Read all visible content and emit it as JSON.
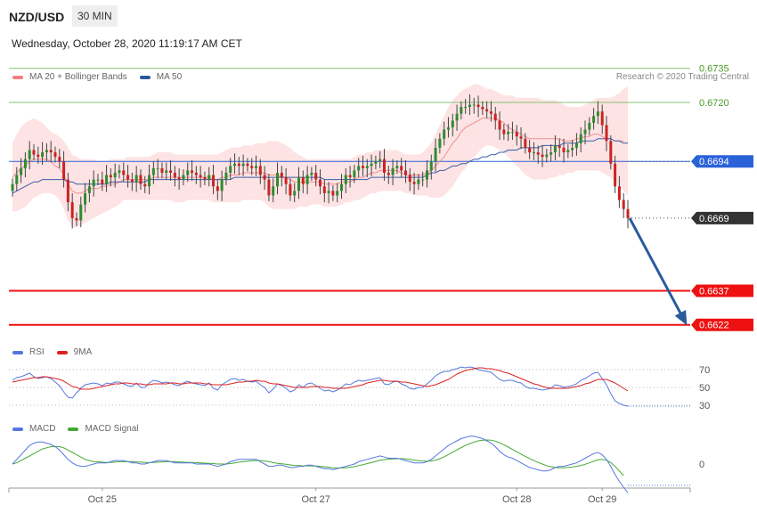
{
  "header": {
    "pair": "NZD/USD",
    "timeframe": "30 MIN",
    "datetime": "Wednesday, October 28, 2020 11:19:17 AM CET"
  },
  "legend": [
    {
      "label": "MA 20 + Bollinger Bands",
      "color": "#f08080"
    },
    {
      "label": "MA 50",
      "color": "#2a5a9e"
    }
  ],
  "credit": "Research © 2020 Trading Central",
  "indicators": {
    "rsi_legend": [
      {
        "label": "RSI",
        "color": "#5577dd"
      },
      {
        "label": "9MA",
        "color": "#dd2222"
      }
    ],
    "macd_legend": [
      {
        "label": "MACD",
        "color": "#5577dd"
      },
      {
        "label": "MACD Signal",
        "color": "#44aa33"
      }
    ],
    "rsi_levels": [
      "70",
      "50",
      "30"
    ],
    "macd_zero": "0"
  },
  "chart_data": {
    "type": "candlestick",
    "x_labels": [
      "Oct 25",
      "Oct 27",
      "Oct 28",
      "Oct 29"
    ],
    "x_label_index": [
      21,
      71,
      118,
      138
    ],
    "ylim": [
      0.6616,
      0.674
    ],
    "levels": [
      {
        "value": 0.6735,
        "label": "0.6735",
        "style": "green-line"
      },
      {
        "value": 0.672,
        "label": "0.6720",
        "style": "green-line"
      },
      {
        "value": 0.6694,
        "label": "0.6694",
        "style": "blue-tag"
      },
      {
        "value": 0.6669,
        "label": "0.6669",
        "style": "dark-tag"
      },
      {
        "value": 0.6637,
        "label": "0.6637",
        "style": "red-tag"
      },
      {
        "value": 0.6622,
        "label": "0.6622",
        "style": "red-tag"
      }
    ],
    "forecast_arrow": {
      "from": 0.6669,
      "to": 0.6622
    },
    "close": [
      0.6684,
      0.6688,
      0.6691,
      0.6695,
      0.6699,
      0.6697,
      0.6696,
      0.6698,
      0.6699,
      0.6698,
      0.6696,
      0.6694,
      0.6686,
      0.6676,
      0.6669,
      0.6668,
      0.6675,
      0.668,
      0.6683,
      0.6686,
      0.6686,
      0.6684,
      0.6688,
      0.6687,
      0.6689,
      0.669,
      0.6688,
      0.6686,
      0.6685,
      0.6688,
      0.6684,
      0.6683,
      0.6688,
      0.6691,
      0.6691,
      0.6689,
      0.669,
      0.6689,
      0.6687,
      0.6686,
      0.6688,
      0.669,
      0.6689,
      0.6688,
      0.6687,
      0.6686,
      0.6688,
      0.6683,
      0.6681,
      0.6686,
      0.6689,
      0.6692,
      0.6693,
      0.6692,
      0.6693,
      0.6692,
      0.6691,
      0.6692,
      0.6688,
      0.6686,
      0.6679,
      0.6683,
      0.6689,
      0.6687,
      0.6684,
      0.6679,
      0.6681,
      0.6687,
      0.6684,
      0.6688,
      0.6689,
      0.6686,
      0.6683,
      0.668,
      0.6681,
      0.6679,
      0.6681,
      0.6684,
      0.6688,
      0.6687,
      0.669,
      0.6692,
      0.6691,
      0.6692,
      0.6693,
      0.6694,
      0.6695,
      0.6689,
      0.6688,
      0.6691,
      0.6692,
      0.669,
      0.6688,
      0.6685,
      0.6684,
      0.6686,
      0.6686,
      0.669,
      0.6694,
      0.67,
      0.6704,
      0.6708,
      0.6709,
      0.6712,
      0.6715,
      0.6718,
      0.6718,
      0.6719,
      0.6719,
      0.6718,
      0.6717,
      0.6716,
      0.6715,
      0.6712,
      0.6708,
      0.6706,
      0.6707,
      0.6707,
      0.6705,
      0.6704,
      0.67,
      0.6698,
      0.6698,
      0.6697,
      0.6696,
      0.6697,
      0.6698,
      0.6701,
      0.67,
      0.6698,
      0.6699,
      0.67,
      0.6702,
      0.6706,
      0.6708,
      0.6711,
      0.6714,
      0.6716,
      0.671,
      0.6703,
      0.6693,
      0.6683,
      0.6677,
      0.6673,
      0.6669
    ],
    "bb_upper": [
      0.6702,
      0.6706,
      0.6709,
      0.6711,
      0.6712,
      0.6713,
      0.6712,
      0.6711,
      0.6709,
      0.6707,
      0.6706,
      0.6705,
      0.6703,
      0.67,
      0.6697,
      0.6696,
      0.6695,
      0.6695,
      0.6695,
      0.6695,
      0.6694,
      0.6694,
      0.6694,
      0.6695,
      0.6695,
      0.6695,
      0.6695,
      0.6696,
      0.6696,
      0.6696,
      0.6696,
      0.6696,
      0.6696,
      0.6697,
      0.6698,
      0.6698,
      0.6698,
      0.6698,
      0.6697,
      0.6697,
      0.6697,
      0.6697,
      0.6697,
      0.6697,
      0.6697,
      0.6697,
      0.6697,
      0.6697,
      0.6697,
      0.6698,
      0.6699,
      0.67,
      0.67,
      0.67,
      0.6701,
      0.6701,
      0.6701,
      0.6702,
      0.6702,
      0.6702,
      0.6703,
      0.6703,
      0.6703,
      0.6702,
      0.6701,
      0.67,
      0.6698,
      0.6697,
      0.6696,
      0.6695,
      0.6695,
      0.6695,
      0.6695,
      0.6695,
      0.6695,
      0.6695,
      0.6695,
      0.6695,
      0.6695,
      0.6695,
      0.6696,
      0.6697,
      0.6697,
      0.6698,
      0.6698,
      0.6699,
      0.6699,
      0.6699,
      0.6699,
      0.6699,
      0.6699,
      0.6698,
      0.6697,
      0.6697,
      0.6697,
      0.6697,
      0.6698,
      0.67,
      0.6702,
      0.6706,
      0.671,
      0.6714,
      0.6718,
      0.6721,
      0.6723,
      0.6725,
      0.6726,
      0.6727,
      0.6728,
      0.6728,
      0.6727,
      0.6726,
      0.6726,
      0.6725,
      0.6724,
      0.6723,
      0.6723,
      0.6723,
      0.6722,
      0.6722,
      0.6722,
      0.6722,
      0.6722,
      0.6722,
      0.6721,
      0.6721,
      0.6721,
      0.6721,
      0.672,
      0.6719,
      0.6718,
      0.6718,
      0.6718,
      0.6718,
      0.6719,
      0.672,
      0.6721,
      0.6722,
      0.6722,
      0.6722,
      0.6722,
      0.6723,
      0.6724,
      0.6726,
      0.6727
    ],
    "bb_lower": [
      0.6672,
      0.6672,
      0.6673,
      0.6674,
      0.6676,
      0.6678,
      0.6679,
      0.668,
      0.668,
      0.668,
      0.6679,
      0.6677,
      0.6673,
      0.6668,
      0.6665,
      0.6665,
      0.6666,
      0.6667,
      0.6668,
      0.6669,
      0.667,
      0.6671,
      0.6672,
      0.6673,
      0.6674,
      0.6675,
      0.6677,
      0.6677,
      0.6677,
      0.6677,
      0.6677,
      0.6677,
      0.6677,
      0.6677,
      0.6677,
      0.6677,
      0.6677,
      0.6677,
      0.6676,
      0.6676,
      0.6676,
      0.6677,
      0.6677,
      0.6677,
      0.6677,
      0.6677,
      0.6677,
      0.6676,
      0.6676,
      0.6676,
      0.6676,
      0.6676,
      0.6676,
      0.6676,
      0.6677,
      0.6677,
      0.6677,
      0.6677,
      0.6677,
      0.6676,
      0.6674,
      0.6673,
      0.6673,
      0.6673,
      0.6673,
      0.6673,
      0.6673,
      0.6674,
      0.6674,
      0.6674,
      0.6675,
      0.6675,
      0.6675,
      0.6674,
      0.6674,
      0.6674,
      0.6674,
      0.6675,
      0.6676,
      0.6676,
      0.6677,
      0.6677,
      0.6678,
      0.6679,
      0.668,
      0.668,
      0.6681,
      0.6681,
      0.6681,
      0.6681,
      0.6681,
      0.6681,
      0.668,
      0.668,
      0.6679,
      0.6679,
      0.6679,
      0.6679,
      0.6678,
      0.6678,
      0.6678,
      0.6679,
      0.6681,
      0.6683,
      0.6686,
      0.6689,
      0.6691,
      0.6694,
      0.6696,
      0.6698,
      0.67,
      0.6701,
      0.6701,
      0.67,
      0.6699,
      0.6698,
      0.6696,
      0.6694,
      0.6692,
      0.669,
      0.6688,
      0.6687,
      0.6686,
      0.6686,
      0.6686,
      0.6686,
      0.6687,
      0.6687,
      0.6688,
      0.6688,
      0.6689,
      0.6689,
      0.669,
      0.669,
      0.669,
      0.669,
      0.669,
      0.669,
      0.6689,
      0.6688,
      0.6687,
      0.6685,
      0.6683,
      0.6681,
      0.6679
    ],
    "ma20": [
      0.6687,
      0.6689,
      0.6691,
      0.6692,
      0.6694,
      0.6695,
      0.6695,
      0.6695,
      0.6695,
      0.6694,
      0.6692,
      0.6691,
      0.6688,
      0.6684,
      0.6681,
      0.668,
      0.668,
      0.6681,
      0.6682,
      0.6682,
      0.6682,
      0.6683,
      0.6683,
      0.6684,
      0.6684,
      0.6685,
      0.6686,
      0.6686,
      0.6686,
      0.6686,
      0.6686,
      0.6686,
      0.6686,
      0.6687,
      0.6687,
      0.6687,
      0.6687,
      0.6687,
      0.6687,
      0.6687,
      0.6687,
      0.6687,
      0.6687,
      0.6687,
      0.6687,
      0.6687,
      0.6687,
      0.6686,
      0.6686,
      0.6687,
      0.6687,
      0.6688,
      0.6688,
      0.6688,
      0.6689,
      0.6689,
      0.6689,
      0.6689,
      0.6689,
      0.6689,
      0.6688,
      0.6688,
      0.6688,
      0.6687,
      0.6687,
      0.6686,
      0.6685,
      0.6685,
      0.6685,
      0.6685,
      0.6685,
      0.6685,
      0.6685,
      0.6684,
      0.6684,
      0.6684,
      0.6684,
      0.6685,
      0.6685,
      0.6685,
      0.6686,
      0.6687,
      0.6687,
      0.6688,
      0.6689,
      0.6689,
      0.669,
      0.669,
      0.669,
      0.669,
      0.669,
      0.6689,
      0.6688,
      0.6688,
      0.6688,
      0.6688,
      0.6688,
      0.6689,
      0.669,
      0.6692,
      0.6694,
      0.6696,
      0.6699,
      0.6702,
      0.6704,
      0.6707,
      0.6709,
      0.671,
      0.6711,
      0.6712,
      0.6713,
      0.6713,
      0.6713,
      0.6713,
      0.6712,
      0.6711,
      0.6709,
      0.6708,
      0.6707,
      0.6706,
      0.6705,
      0.6704,
      0.6704,
      0.6704,
      0.6704,
      0.6704,
      0.6704,
      0.6704,
      0.6704,
      0.6703,
      0.6703,
      0.6703,
      0.6704,
      0.6704,
      0.6705,
      0.6705,
      0.6706,
      0.6706,
      0.6705,
      0.6704,
      0.6704,
      0.6703,
      0.6703,
      0.6703
    ],
    "ma50": [
      0.668,
      0.6681,
      0.6682,
      0.6683,
      0.6684,
      0.6685,
      0.6685,
      0.6686,
      0.6686,
      0.6686,
      0.6686,
      0.6686,
      0.6686,
      0.6685,
      0.6685,
      0.6684,
      0.6684,
      0.6684,
      0.6684,
      0.6684,
      0.6684,
      0.6684,
      0.6684,
      0.6685,
      0.6685,
      0.6685,
      0.6685,
      0.6685,
      0.6685,
      0.6685,
      0.6685,
      0.6685,
      0.6686,
      0.6686,
      0.6686,
      0.6686,
      0.6686,
      0.6686,
      0.6686,
      0.6686,
      0.6686,
      0.6686,
      0.6686,
      0.6686,
      0.6686,
      0.6686,
      0.6686,
      0.6686,
      0.6686,
      0.6686,
      0.6686,
      0.6686,
      0.6687,
      0.6687,
      0.6687,
      0.6687,
      0.6687,
      0.6687,
      0.6687,
      0.6687,
      0.6687,
      0.6687,
      0.6687,
      0.6687,
      0.6687,
      0.6687,
      0.6687,
      0.6687,
      0.6687,
      0.6687,
      0.6687,
      0.6687,
      0.6687,
      0.6686,
      0.6686,
      0.6686,
      0.6686,
      0.6686,
      0.6686,
      0.6686,
      0.6686,
      0.6686,
      0.6686,
      0.6686,
      0.6687,
      0.6687,
      0.6687,
      0.6687,
      0.6687,
      0.6687,
      0.6687,
      0.6687,
      0.6687,
      0.6687,
      0.6687,
      0.6687,
      0.6687,
      0.6688,
      0.6689,
      0.6689,
      0.669,
      0.669,
      0.6691,
      0.6692,
      0.6692,
      0.6693,
      0.6693,
      0.6694,
      0.6695,
      0.6695,
      0.6696,
      0.6696,
      0.6697,
      0.6697,
      0.6698,
      0.6698,
      0.6699,
      0.6699,
      0.6699,
      0.67,
      0.67,
      0.67,
      0.67,
      0.67,
      0.6701,
      0.6701,
      0.6701,
      0.6701,
      0.6701,
      0.6702,
      0.6702,
      0.6702,
      0.6702,
      0.6703,
      0.6703,
      0.6703,
      0.6703,
      0.6704,
      0.6704,
      0.6704,
      0.6704,
      0.6703,
      0.6703,
      0.6702,
      0.6702
    ],
    "rsi": [
      58,
      61,
      62,
      64,
      66,
      62,
      60,
      61,
      62,
      60,
      56,
      52,
      45,
      39,
      38,
      44,
      49,
      53,
      54,
      55,
      54,
      52,
      55,
      54,
      56,
      56,
      54,
      52,
      51,
      55,
      50,
      50,
      55,
      58,
      57,
      55,
      56,
      55,
      53,
      52,
      55,
      57,
      55,
      54,
      53,
      52,
      55,
      49,
      47,
      53,
      56,
      59,
      60,
      58,
      59,
      57,
      56,
      57,
      53,
      50,
      44,
      48,
      54,
      52,
      49,
      45,
      47,
      53,
      50,
      54,
      55,
      52,
      49,
      46,
      47,
      45,
      47,
      50,
      54,
      53,
      56,
      58,
      57,
      58,
      59,
      60,
      61,
      54,
      53,
      56,
      57,
      54,
      52,
      49,
      48,
      50,
      50,
      54,
      58,
      63,
      66,
      68,
      68,
      70,
      71,
      73,
      72,
      73,
      72,
      70,
      69,
      68,
      67,
      63,
      59,
      57,
      58,
      58,
      56,
      55,
      51,
      49,
      49,
      48,
      47,
      48,
      49,
      53,
      52,
      50,
      51,
      52,
      54,
      58,
      60,
      63,
      66,
      67,
      60,
      53,
      43,
      35,
      32,
      30,
      29
    ],
    "rsi_ma": [
      56,
      57,
      58,
      59,
      60,
      61,
      61,
      62,
      62,
      61,
      60,
      59,
      57,
      54,
      51,
      50,
      48,
      48,
      48,
      49,
      50,
      51,
      52,
      53,
      54,
      54,
      55,
      55,
      54,
      54,
      54,
      53,
      53,
      54,
      54,
      54,
      54,
      55,
      55,
      54,
      54,
      55,
      55,
      55,
      55,
      54,
      54,
      53,
      53,
      53,
      53,
      54,
      55,
      56,
      56,
      57,
      57,
      58,
      57,
      57,
      55,
      54,
      54,
      53,
      52,
      51,
      50,
      50,
      50,
      50,
      51,
      51,
      51,
      50,
      50,
      49,
      49,
      49,
      49,
      50,
      51,
      52,
      53,
      55,
      56,
      57,
      58,
      58,
      57,
      57,
      57,
      56,
      56,
      55,
      54,
      53,
      52,
      51,
      52,
      53,
      55,
      57,
      59,
      62,
      65,
      67,
      69,
      70,
      71,
      72,
      72,
      71,
      71,
      70,
      69,
      67,
      66,
      64,
      62,
      60,
      58,
      56,
      54,
      53,
      51,
      50,
      49,
      49,
      49,
      49,
      49,
      50,
      51,
      52,
      54,
      55,
      57,
      59,
      59,
      59,
      57,
      55,
      52,
      49,
      46
    ],
    "macd": [
      0.0,
      0.2,
      0.4,
      0.6,
      0.8,
      0.9,
      0.95,
      0.95,
      0.9,
      0.85,
      0.75,
      0.6,
      0.4,
      0.2,
      0.05,
      -0.05,
      -0.1,
      -0.1,
      -0.05,
      0.0,
      0.05,
      0.05,
      0.05,
      0.1,
      0.15,
      0.15,
      0.15,
      0.1,
      0.05,
      0.05,
      0.0,
      0.0,
      0.05,
      0.1,
      0.15,
      0.15,
      0.15,
      0.1,
      0.05,
      0.05,
      0.05,
      0.05,
      0.05,
      0.0,
      0.0,
      0.0,
      0.0,
      -0.05,
      -0.1,
      -0.05,
      0.0,
      0.1,
      0.15,
      0.2,
      0.2,
      0.2,
      0.2,
      0.2,
      0.1,
      0.0,
      -0.1,
      -0.1,
      -0.05,
      -0.05,
      -0.1,
      -0.15,
      -0.15,
      -0.1,
      -0.1,
      -0.05,
      -0.05,
      -0.1,
      -0.15,
      -0.2,
      -0.2,
      -0.25,
      -0.2,
      -0.15,
      -0.1,
      -0.05,
      0.0,
      0.1,
      0.15,
      0.2,
      0.25,
      0.3,
      0.35,
      0.3,
      0.25,
      0.25,
      0.25,
      0.2,
      0.15,
      0.1,
      0.05,
      0.05,
      0.05,
      0.1,
      0.2,
      0.35,
      0.5,
      0.65,
      0.8,
      0.9,
      1.0,
      1.1,
      1.15,
      1.2,
      1.2,
      1.15,
      1.1,
      1.0,
      0.9,
      0.75,
      0.55,
      0.4,
      0.3,
      0.25,
      0.15,
      0.05,
      -0.05,
      -0.15,
      -0.2,
      -0.25,
      -0.3,
      -0.3,
      -0.25,
      -0.15,
      -0.1,
      -0.1,
      -0.05,
      0.0,
      0.05,
      0.15,
      0.25,
      0.35,
      0.45,
      0.5,
      0.4,
      0.2,
      -0.1,
      -0.45,
      -0.75,
      -1.0,
      -1.25
    ],
    "macd_signal": [
      0.0,
      0.05,
      0.15,
      0.25,
      0.35,
      0.45,
      0.55,
      0.65,
      0.7,
      0.75,
      0.75,
      0.75,
      0.7,
      0.6,
      0.5,
      0.4,
      0.3,
      0.2,
      0.15,
      0.1,
      0.1,
      0.08,
      0.07,
      0.07,
      0.08,
      0.1,
      0.1,
      0.1,
      0.1,
      0.09,
      0.08,
      0.07,
      0.06,
      0.07,
      0.08,
      0.09,
      0.1,
      0.1,
      0.1,
      0.09,
      0.08,
      0.07,
      0.07,
      0.06,
      0.05,
      0.04,
      0.03,
      0.02,
      0.0,
      0.0,
      0.0,
      0.02,
      0.05,
      0.08,
      0.1,
      0.12,
      0.14,
      0.15,
      0.15,
      0.13,
      0.1,
      0.06,
      0.03,
      0.01,
      -0.01,
      -0.04,
      -0.06,
      -0.07,
      -0.08,
      -0.08,
      -0.08,
      -0.09,
      -0.1,
      -0.12,
      -0.14,
      -0.16,
      -0.17,
      -0.17,
      -0.16,
      -0.14,
      -0.11,
      -0.07,
      -0.03,
      0.02,
      0.06,
      0.11,
      0.16,
      0.19,
      0.21,
      0.22,
      0.23,
      0.23,
      0.22,
      0.2,
      0.17,
      0.15,
      0.13,
      0.12,
      0.13,
      0.17,
      0.23,
      0.31,
      0.41,
      0.51,
      0.61,
      0.71,
      0.8,
      0.88,
      0.95,
      1.0,
      1.03,
      1.04,
      1.03,
      0.99,
      0.92,
      0.83,
      0.73,
      0.63,
      0.53,
      0.43,
      0.33,
      0.24,
      0.15,
      0.07,
      0.0,
      -0.07,
      -0.12,
      -0.15,
      -0.16,
      -0.16,
      -0.15,
      -0.13,
      -0.1,
      -0.06,
      -0.01,
      0.05,
      0.12,
      0.18,
      0.2,
      0.16,
      0.06,
      -0.1,
      -0.3,
      -0.5
    ]
  }
}
